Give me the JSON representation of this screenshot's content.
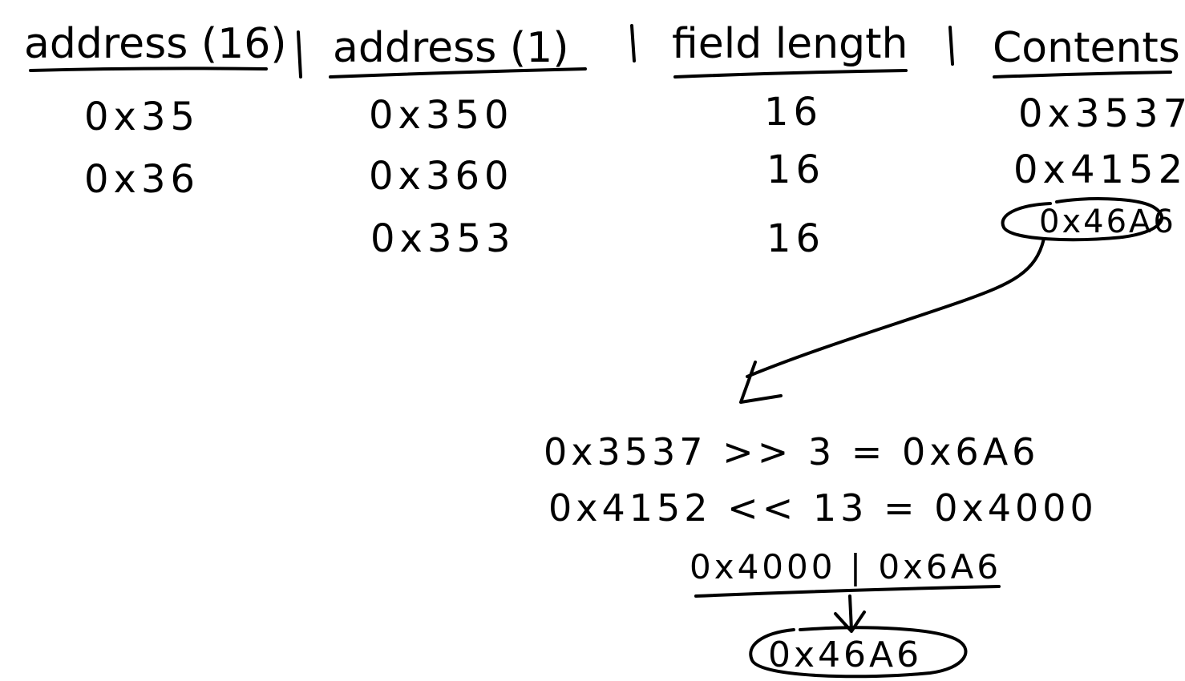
{
  "table": {
    "headers": [
      "address (16)",
      "address (1)",
      "field length",
      "Contents"
    ],
    "address16": [
      "0x35",
      "0x36"
    ],
    "address1": [
      "0x350",
      "0x360",
      "0x353"
    ],
    "field_length": [
      "16",
      "16",
      "16"
    ],
    "contents": [
      "0x3537",
      "0x4152",
      "0x46A6"
    ]
  },
  "calculation": {
    "line1": "0x3537 >> 3 = 0x6A6",
    "line2": "0x4152 << 13 = 0x4000",
    "line3": "0x4000 | 0x6A6",
    "result": "0x46A6"
  },
  "colors": {
    "ink": "#000000",
    "paper": "#ffffff"
  }
}
